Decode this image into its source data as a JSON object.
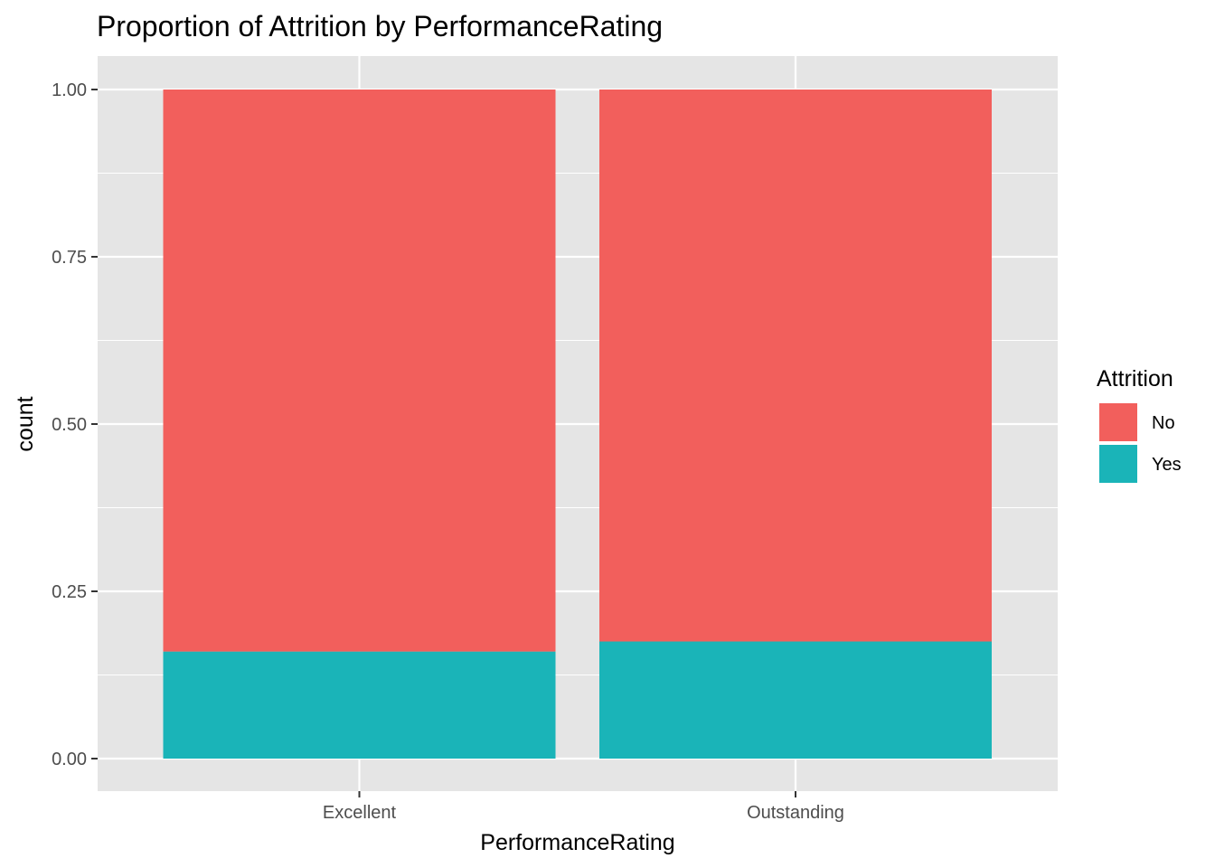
{
  "chart_data": {
    "type": "bar",
    "stacked": true,
    "title": "Proportion of Attrition by  PerformanceRating",
    "xlabel": "PerformanceRating",
    "ylabel": "count",
    "categories": [
      "Excellent",
      "Outstanding"
    ],
    "series": [
      {
        "name": "No",
        "values": [
          0.84,
          0.825
        ],
        "color": "#F25F5C"
      },
      {
        "name": "Yes",
        "values": [
          0.16,
          0.175
        ],
        "color": "#1AB4B8"
      }
    ],
    "ylim": [
      -0.05,
      1.05
    ],
    "yticks": [
      0.0,
      0.25,
      0.5,
      0.75,
      1.0
    ],
    "ytick_labels": [
      "0.00",
      "0.25",
      "0.50",
      "0.75",
      "1.00"
    ],
    "grid": true,
    "legend": {
      "title": "Attrition",
      "position": "right",
      "entries": [
        "No",
        "Yes"
      ]
    },
    "panel_background": "#E5E5E5",
    "grid_color": "#FFFFFF"
  }
}
